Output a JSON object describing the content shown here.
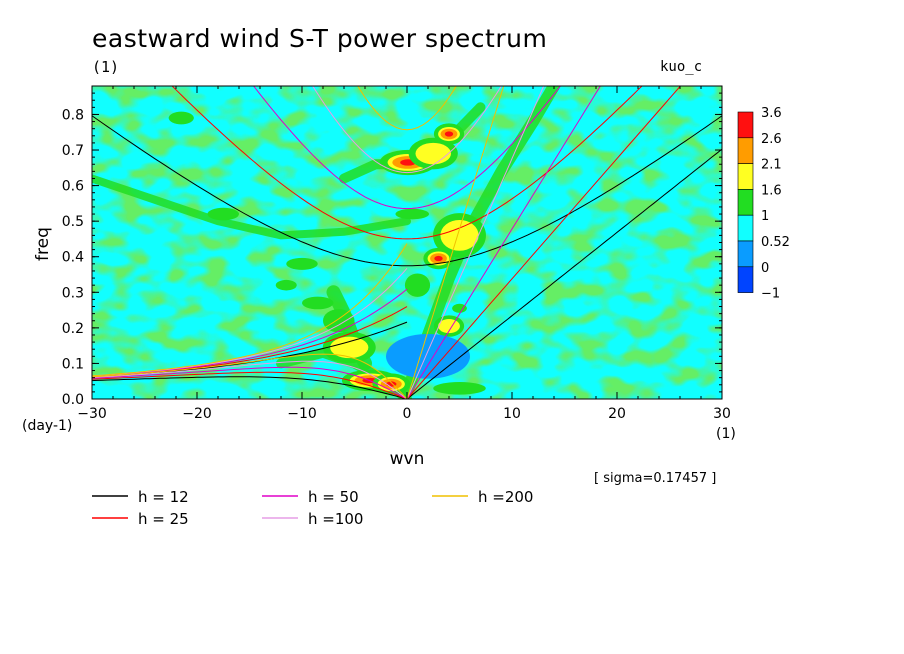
{
  "chart_data": {
    "type": "heatmap",
    "title": "eastward wind S-T power spectrum",
    "subtitle": "(1)",
    "experiment_label": "kuo_c",
    "xlabel": "wvn",
    "ylabel": "freq",
    "x_unit": "(1)",
    "y_unit": "(day-1)",
    "xlim": [
      -30,
      30
    ],
    "ylim": [
      0,
      0.88
    ],
    "x_ticks": [
      -30,
      -20,
      -10,
      0,
      10,
      20,
      30
    ],
    "y_ticks": [
      0.0,
      0.1,
      0.2,
      0.3,
      0.4,
      0.5,
      0.6,
      0.7,
      0.8
    ],
    "x_tick_labels": [
      "−30",
      "−20",
      "−10",
      "0",
      "10",
      "20",
      "30"
    ],
    "y_tick_labels": [
      "0.0",
      "0.1",
      "0.2",
      "0.3",
      "0.4",
      "0.5",
      "0.6",
      "0.7",
      "0.8"
    ],
    "sigma_note": "[ sigma=0.17457 ]",
    "colorbar": {
      "labels": [
        "3.6",
        "2.6",
        "2.1",
        "1.6",
        "1",
        "0.52",
        "0",
        "−1"
      ],
      "colors": [
        "#ff1010",
        "#ff9c00",
        "#ffff22",
        "#22dd22",
        "#11ffff",
        "#0a9cff",
        "#0044ff"
      ]
    },
    "background_color": "#11ffff",
    "features": [
      {
        "kind": "blob",
        "x": -21.5,
        "y": 0.79,
        "rx": 1.2,
        "ry": 0.015,
        "level": 3
      },
      {
        "kind": "blob",
        "x": -10.0,
        "y": 0.38,
        "rx": 1.5,
        "ry": 0.014,
        "level": 3
      },
      {
        "kind": "blob",
        "x": -6.5,
        "y": 0.22,
        "rx": 1.5,
        "ry": 0.03,
        "level": 3
      },
      {
        "kind": "blob",
        "x": -5.5,
        "y": 0.145,
        "rx": 1.4,
        "ry": 0.02,
        "level": 4
      },
      {
        "kind": "blob",
        "x": -3.5,
        "y": 0.052,
        "rx": 1.5,
        "ry": 0.012,
        "level": 6
      },
      {
        "kind": "blob",
        "x": -1.5,
        "y": 0.042,
        "rx": 1.0,
        "ry": 0.012,
        "level": 6
      },
      {
        "kind": "blob",
        "x": 0.1,
        "y": 0.665,
        "rx": 1.5,
        "ry": 0.015,
        "level": 6
      },
      {
        "kind": "blob",
        "x": 2.5,
        "y": 0.69,
        "rx": 1.3,
        "ry": 0.02,
        "level": 4
      },
      {
        "kind": "blob",
        "x": 4.0,
        "y": 0.745,
        "rx": 0.8,
        "ry": 0.012,
        "level": 6
      },
      {
        "kind": "blob",
        "x": 0.5,
        "y": 0.52,
        "rx": 1.6,
        "ry": 0.012,
        "level": 3
      },
      {
        "kind": "blob",
        "x": 5.0,
        "y": 0.46,
        "rx": 1.4,
        "ry": 0.03,
        "level": 4
      },
      {
        "kind": "blob",
        "x": 3.0,
        "y": 0.395,
        "rx": 0.8,
        "ry": 0.012,
        "level": 6
      },
      {
        "kind": "blob",
        "x": 1.0,
        "y": 0.32,
        "rx": 1.2,
        "ry": 0.03,
        "level": 3
      },
      {
        "kind": "blob",
        "x": 4.0,
        "y": 0.205,
        "rx": 0.8,
        "ry": 0.012,
        "level": 4
      },
      {
        "kind": "blob",
        "x": 5.0,
        "y": 0.03,
        "rx": 2.5,
        "ry": 0.015,
        "level": 3
      },
      {
        "kind": "blob",
        "x": 5.0,
        "y": 0.255,
        "rx": 0.7,
        "ry": 0.01,
        "level": 3
      },
      {
        "kind": "blob",
        "x": -17.5,
        "y": 0.52,
        "rx": 1.5,
        "ry": 0.015,
        "level": 3
      },
      {
        "kind": "blob",
        "x": -11.5,
        "y": 0.32,
        "rx": 1.0,
        "ry": 0.012,
        "level": 3
      },
      {
        "kind": "blob",
        "x": -8.5,
        "y": 0.27,
        "rx": 1.5,
        "ry": 0.015,
        "level": 3
      },
      {
        "kind": "blob",
        "x": 2.0,
        "y": 0.12,
        "rx": 4.0,
        "ry": 0.06,
        "level": 0
      }
    ],
    "dispersion_curves": [
      {
        "h": 12,
        "color": "#000000"
      },
      {
        "h": 25,
        "color": "#ff0000"
      },
      {
        "h": 50,
        "color": "#e000c8"
      },
      {
        "h": 100,
        "color": "#e69ee6"
      },
      {
        "h": 200,
        "color": "#f0c000"
      }
    ]
  },
  "legend": [
    {
      "label": "h = 12",
      "color": "#000000"
    },
    {
      "label": "h = 25",
      "color": "#ff0000"
    },
    {
      "label": "h = 50",
      "color": "#e000c8"
    },
    {
      "label": "h =100",
      "color": "#e69ee6"
    },
    {
      "label": "h =200",
      "color": "#f0c000"
    }
  ]
}
